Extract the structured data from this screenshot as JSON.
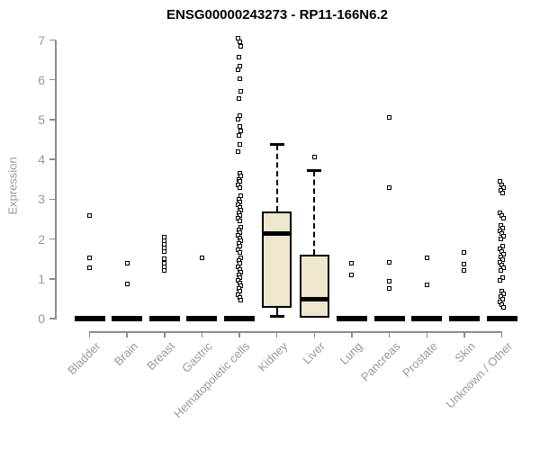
{
  "chart_data": {
    "type": "boxplot",
    "title": "ENSG00000243273 - RP11-166N6.2",
    "xlabel": "",
    "ylabel": "Expression",
    "ylim": [
      0,
      7
    ],
    "yticks": [
      0,
      1,
      2,
      3,
      4,
      5,
      6,
      7
    ],
    "grid": false,
    "legend": "none",
    "categories": [
      "Bladder",
      "Brain",
      "Breast",
      "Gastric",
      "Hematopoietic cells",
      "Kidney",
      "Liver",
      "Lung",
      "Pancreas",
      "Prostate",
      "Skin",
      "Unknown / Other"
    ],
    "colors": {
      "box_fill": "#ede8cd",
      "box_border": "#000000",
      "median": "#000000",
      "axis": "#8c8c8c",
      "tick_label": "#999999",
      "title": "#000000",
      "background": "#ffffff"
    },
    "series": [
      {
        "name": "Bladder",
        "box": {
          "q1": 0,
          "median": 0,
          "q3": 0,
          "whisker_low": 0,
          "whisker_high": 0
        },
        "outliers": [
          2.6,
          1.52,
          1.27
        ]
      },
      {
        "name": "Brain",
        "box": {
          "q1": 0,
          "median": 0,
          "q3": 0,
          "whisker_low": 0,
          "whisker_high": 0
        },
        "outliers": [
          1.4,
          0.86
        ]
      },
      {
        "name": "Breast",
        "box": {
          "q1": 0,
          "median": 0,
          "q3": 0,
          "whisker_low": 0,
          "whisker_high": 0
        },
        "outliers": [
          2.05,
          1.96,
          1.87,
          1.78,
          1.69,
          1.5,
          1.4,
          1.3,
          1.22
        ]
      },
      {
        "name": "Gastric",
        "box": {
          "q1": 0,
          "median": 0,
          "q3": 0,
          "whisker_low": 0,
          "whisker_high": 0
        },
        "outliers": [
          1.52
        ]
      },
      {
        "name": "Hematopoietic cells",
        "box": {
          "q1": 0,
          "median": 0,
          "q3": 0,
          "whisker_low": 0,
          "whisker_high": 0
        },
        "outliers": [
          7.05,
          6.95,
          6.85,
          6.58,
          6.35,
          6.25,
          6.02,
          5.72,
          5.52,
          5.1,
          5.0,
          4.82,
          4.72,
          4.6,
          4.38,
          4.2,
          3.65,
          3.58,
          3.5,
          3.44,
          3.37,
          3.3,
          3.08,
          3.0,
          2.94,
          2.87,
          2.8,
          2.73,
          2.66,
          2.59,
          2.52,
          2.45,
          2.3,
          2.23,
          2.16,
          2.09,
          2.02,
          1.95,
          1.88,
          1.81,
          1.74,
          1.67,
          1.52,
          1.45,
          1.38,
          1.31,
          1.24,
          1.17,
          1.1,
          1.03,
          0.96,
          0.89,
          0.82,
          0.75,
          0.68,
          0.61,
          0.54,
          0.47
        ]
      },
      {
        "name": "Kidney",
        "box": {
          "q1": 0.28,
          "median": 2.14,
          "q3": 2.7,
          "whisker_low": 0.05,
          "whisker_high": 4.37
        },
        "outliers": []
      },
      {
        "name": "Liver",
        "box": {
          "q1": 0.02,
          "median": 0.48,
          "q3": 1.61,
          "whisker_low": 0.02,
          "whisker_high": 3.71
        },
        "outliers": [
          4.07
        ]
      },
      {
        "name": "Lung",
        "box": {
          "q1": 0,
          "median": 0,
          "q3": 0,
          "whisker_low": 0,
          "whisker_high": 0
        },
        "outliers": [
          1.39,
          1.09
        ]
      },
      {
        "name": "Pancreas",
        "box": {
          "q1": 0,
          "median": 0,
          "q3": 0,
          "whisker_low": 0,
          "whisker_high": 0
        },
        "outliers": [
          5.05,
          3.3,
          1.42,
          0.94,
          0.75
        ]
      },
      {
        "name": "Prostate",
        "box": {
          "q1": 0,
          "median": 0,
          "q3": 0,
          "whisker_low": 0,
          "whisker_high": 0
        },
        "outliers": [
          1.53,
          0.84
        ]
      },
      {
        "name": "Skin",
        "box": {
          "q1": 0,
          "median": 0,
          "q3": 0,
          "whisker_low": 0,
          "whisker_high": 0
        },
        "outliers": [
          1.66,
          1.36,
          1.22
        ]
      },
      {
        "name": "Unknown / Other",
        "box": {
          "q1": 0,
          "median": 0,
          "q3": 0,
          "whisker_low": 0,
          "whisker_high": 0
        },
        "outliers": [
          3.44,
          3.37,
          3.3,
          3.23,
          3.16,
          2.66,
          2.59,
          2.52,
          2.35,
          2.28,
          2.21,
          2.14,
          2.07,
          2.0,
          1.83,
          1.76,
          1.69,
          1.62,
          1.55,
          1.48,
          1.41,
          1.34,
          1.27,
          1.2,
          1.04,
          0.97,
          0.7,
          0.63,
          0.56,
          0.49,
          0.42,
          0.35,
          0.28
        ]
      }
    ]
  }
}
